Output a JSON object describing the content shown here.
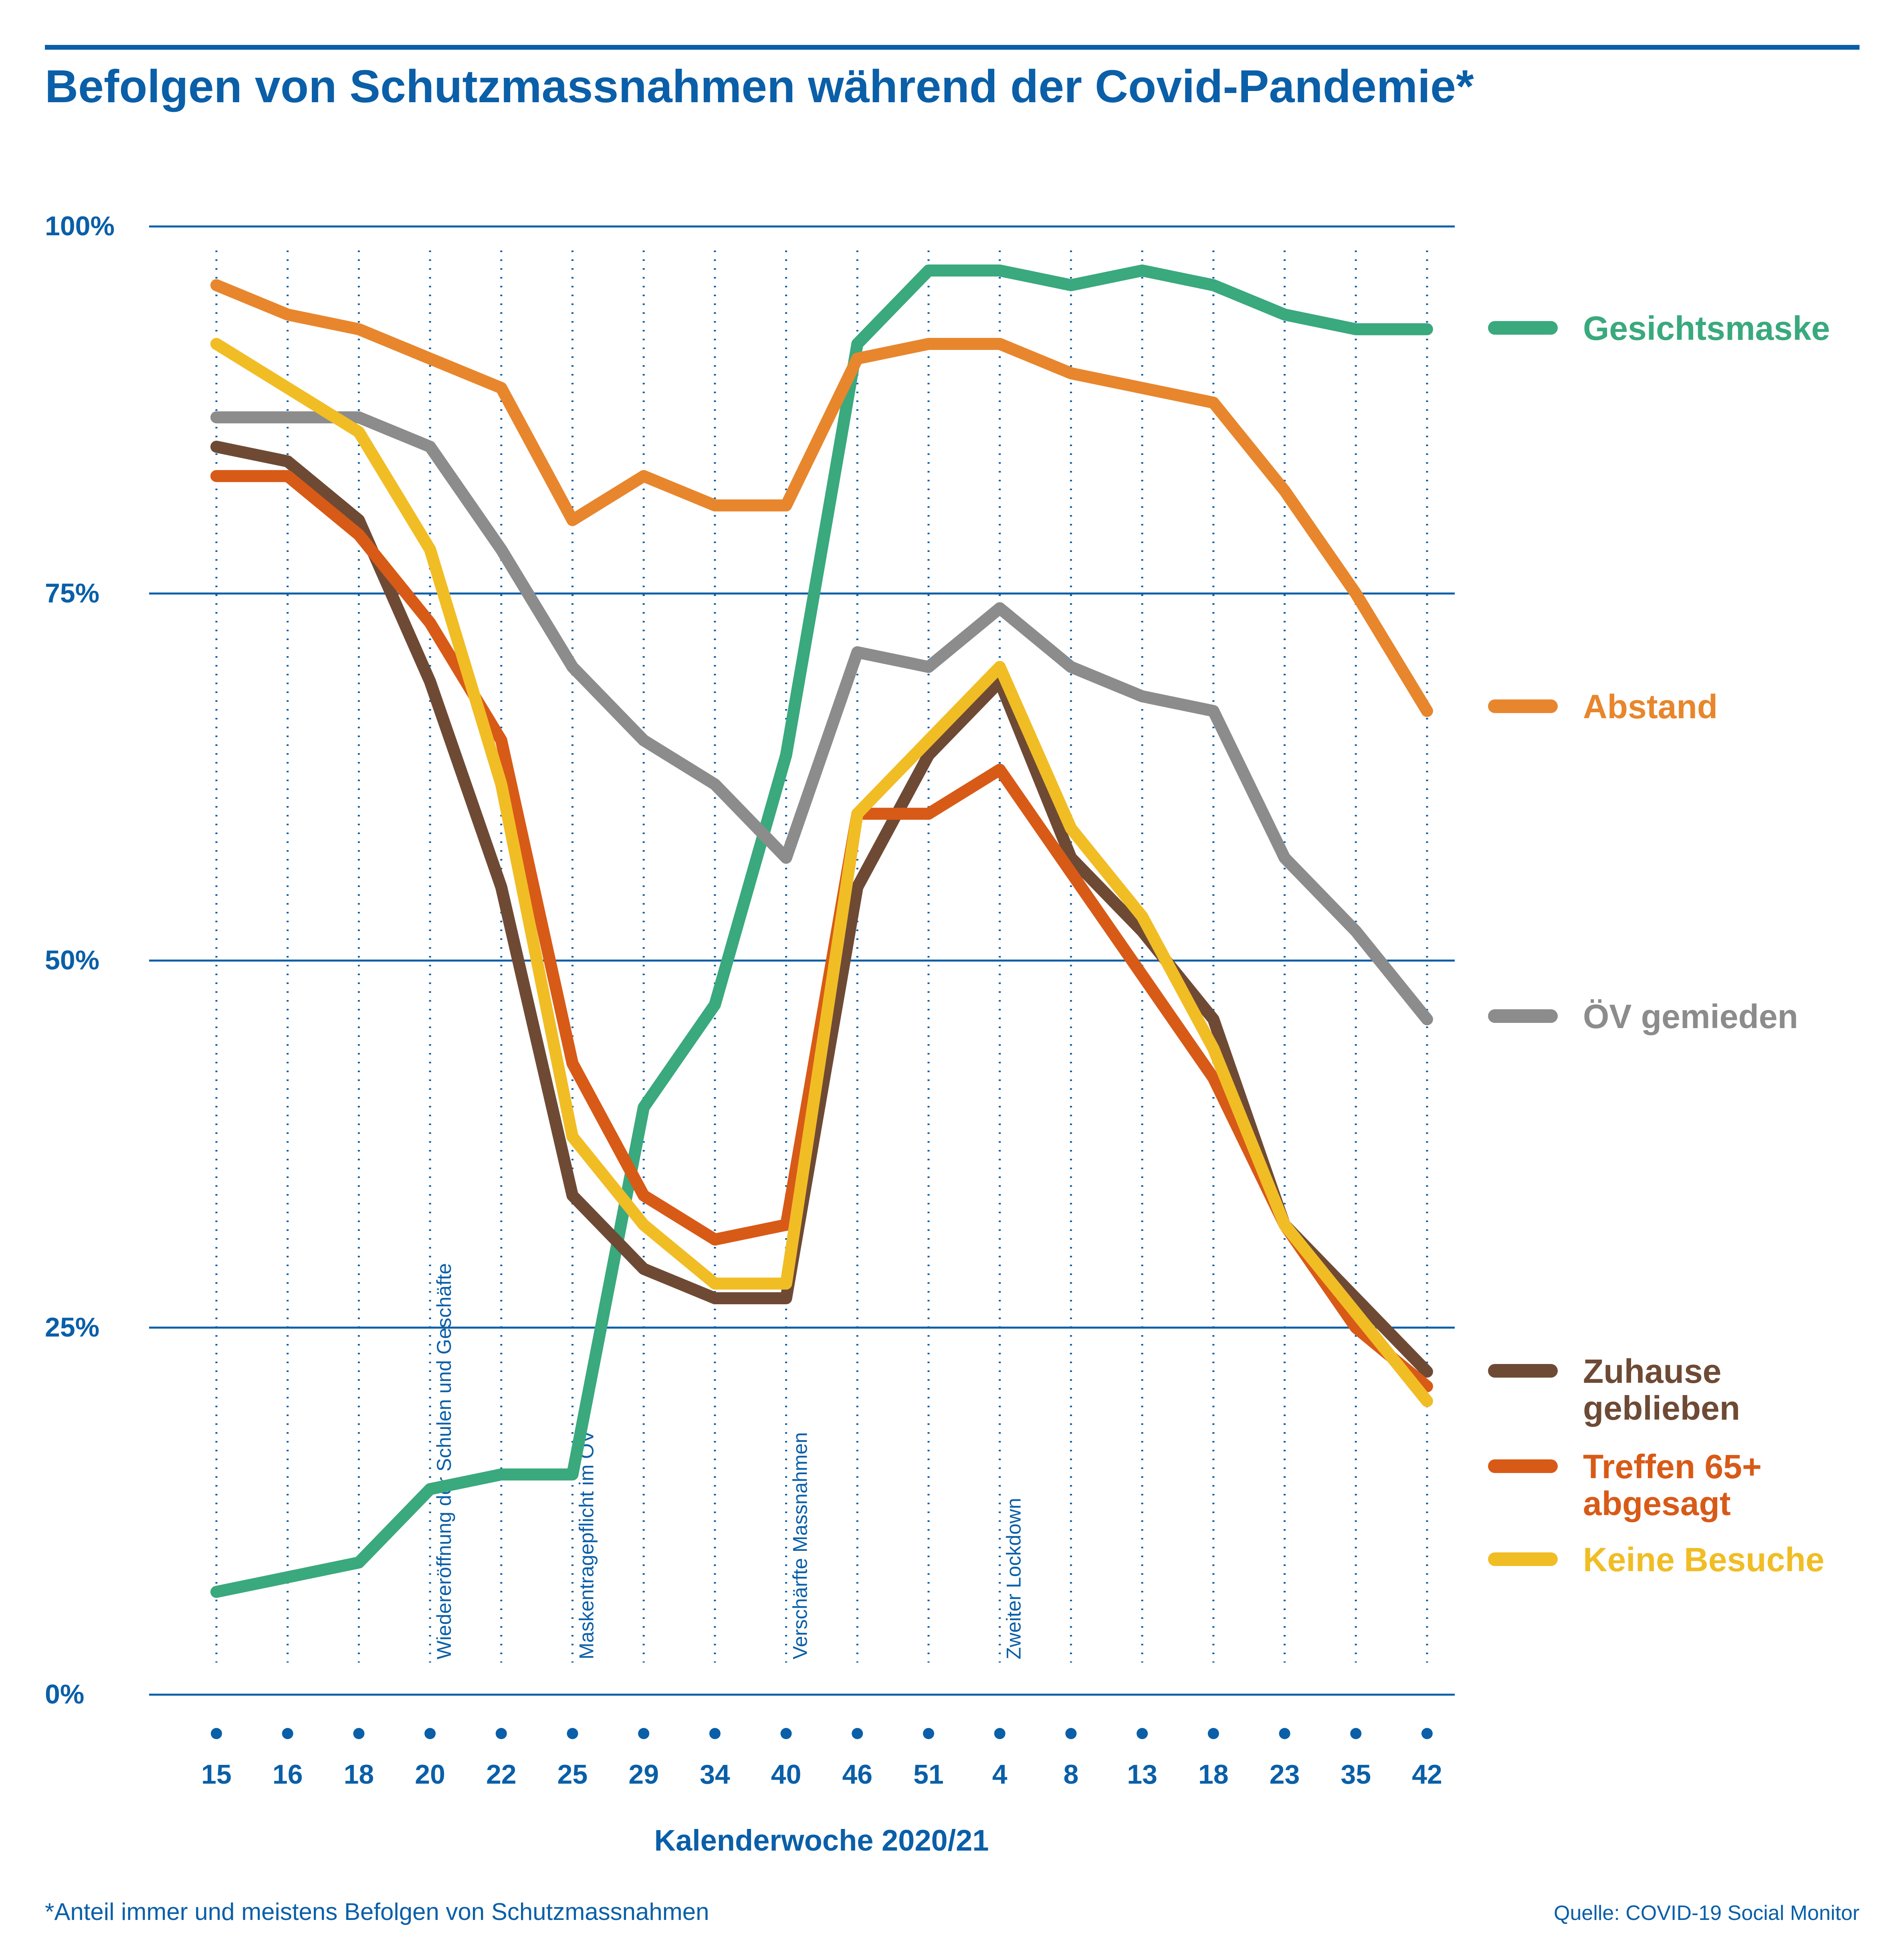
{
  "header": {
    "title": "Befolgen von Schutzmassnahmen während der Covid-Pandemie*"
  },
  "footer": {
    "note": "*Anteil immer und meistens Befolgen von Schutzmassnahmen",
    "source": "Quelle: COVID-19 Social Monitor"
  },
  "chart_data": {
    "type": "line",
    "title": "Befolgen von Schutzmassnahmen während der Covid-Pandemie*",
    "xlabel": "Kalenderwoche 2020/21",
    "ylabel": "",
    "ylim": [
      0,
      100
    ],
    "yticks": [
      0,
      25,
      50,
      75,
      100
    ],
    "ytick_labels": [
      "0%",
      "25%",
      "50%",
      "75%",
      "100%"
    ],
    "grid": "horizontal solid lines, vertical dotted lines",
    "legend_position": "right",
    "categories": [
      "15",
      "16",
      "18",
      "20",
      "22",
      "25",
      "29",
      "34",
      "40",
      "46",
      "51",
      "4",
      "8",
      "13",
      "18",
      "23",
      "35",
      "42"
    ],
    "annotations": [
      {
        "at_category_index": 3,
        "text": "Wiedereröffnung der Schulen und Geschäfte"
      },
      {
        "at_category_index": 5,
        "text": "Maskentragepflicht im ÖV"
      },
      {
        "at_category_index": 8,
        "text": "Verschärfte Massnahmen"
      },
      {
        "at_category_index": 11,
        "text": "Zweiter Lockdown"
      }
    ],
    "series": [
      {
        "name": "Gesichtsmaske",
        "color": "#3aa97d",
        "values": [
          7,
          8,
          9,
          14,
          15,
          15,
          40,
          47,
          64,
          92,
          97,
          97,
          96,
          97,
          96,
          94,
          93,
          93
        ]
      },
      {
        "name": "Abstand",
        "color": "#e8862d",
        "values": [
          96,
          94,
          93,
          91,
          89,
          80,
          83,
          81,
          81,
          91,
          92,
          92,
          90,
          89,
          88,
          82,
          75,
          67
        ]
      },
      {
        "name": "ÖV gemieden",
        "color": "#8c8c8c",
        "values": [
          87,
          87,
          87,
          85,
          78,
          70,
          65,
          62,
          57,
          71,
          70,
          74,
          70,
          68,
          67,
          57,
          52,
          46
        ]
      },
      {
        "name": "Zuhause geblieben",
        "label_lines": [
          "Zuhause",
          "geblieben"
        ],
        "color": "#6e4a35",
        "values": [
          85,
          84,
          80,
          69,
          55,
          34,
          29,
          27,
          27,
          55,
          64,
          69,
          57,
          52,
          46,
          32,
          27,
          22
        ]
      },
      {
        "name": "Treffen 65+ abgesagt",
        "label_lines": [
          "Treffen 65+",
          "abgesagt"
        ],
        "color": "#d85a17",
        "values": [
          83,
          83,
          79,
          73,
          65,
          43,
          34,
          31,
          32,
          60,
          60,
          63,
          56,
          49,
          42,
          32,
          25,
          21
        ]
      },
      {
        "name": "Keine Besuche",
        "color": "#f1bd25",
        "values": [
          92,
          89,
          86,
          78,
          62,
          38,
          32,
          28,
          28,
          60,
          65,
          70,
          59,
          53,
          44,
          32,
          26,
          20
        ]
      }
    ]
  }
}
